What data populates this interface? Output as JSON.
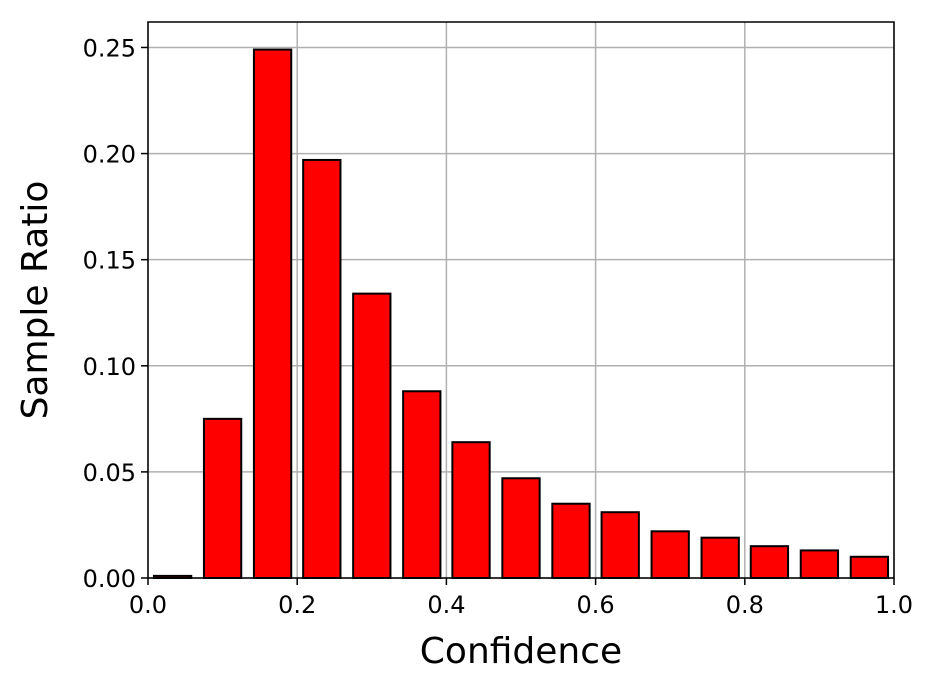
{
  "chart_data": {
    "type": "bar",
    "title": "",
    "xlabel": "Confidence",
    "ylabel": "Sample Ratio",
    "xlim": [
      0.0,
      1.0
    ],
    "ylim": [
      0.0,
      0.262
    ],
    "grid": true,
    "bar_color": "#ff0000",
    "edge_color": "#000000",
    "bar_width": 0.05,
    "xticks": [
      0.0,
      0.2,
      0.4,
      0.6,
      0.8,
      1.0
    ],
    "xtick_labels": [
      "0.0",
      "0.2",
      "0.4",
      "0.6",
      "0.8",
      "1.0"
    ],
    "yticks": [
      0.0,
      0.05,
      0.1,
      0.15,
      0.2,
      0.25
    ],
    "ytick_labels": [
      "0.00",
      "0.05",
      "0.10",
      "0.15",
      "0.20",
      "0.25"
    ],
    "x": [
      0.033,
      0.1,
      0.167,
      0.233,
      0.3,
      0.367,
      0.433,
      0.5,
      0.567,
      0.633,
      0.7,
      0.767,
      0.833,
      0.9,
      0.967
    ],
    "values": [
      0.001,
      0.075,
      0.249,
      0.197,
      0.134,
      0.088,
      0.064,
      0.047,
      0.035,
      0.031,
      0.022,
      0.019,
      0.015,
      0.013,
      0.01
    ]
  }
}
